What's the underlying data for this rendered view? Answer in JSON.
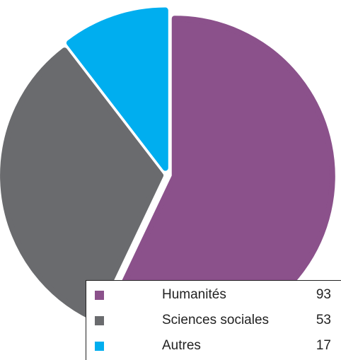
{
  "chart_data": {
    "type": "pie",
    "title": "",
    "slices": [
      {
        "label": "Humanités",
        "value": 93,
        "color": "#8b518b"
      },
      {
        "label": "Sciences sociales",
        "value": 53,
        "color": "#6a6b6e"
      },
      {
        "label": "Autres",
        "value": 17,
        "color": "#00aeef"
      }
    ],
    "exploded": true,
    "legend_position": "bottom-right"
  }
}
